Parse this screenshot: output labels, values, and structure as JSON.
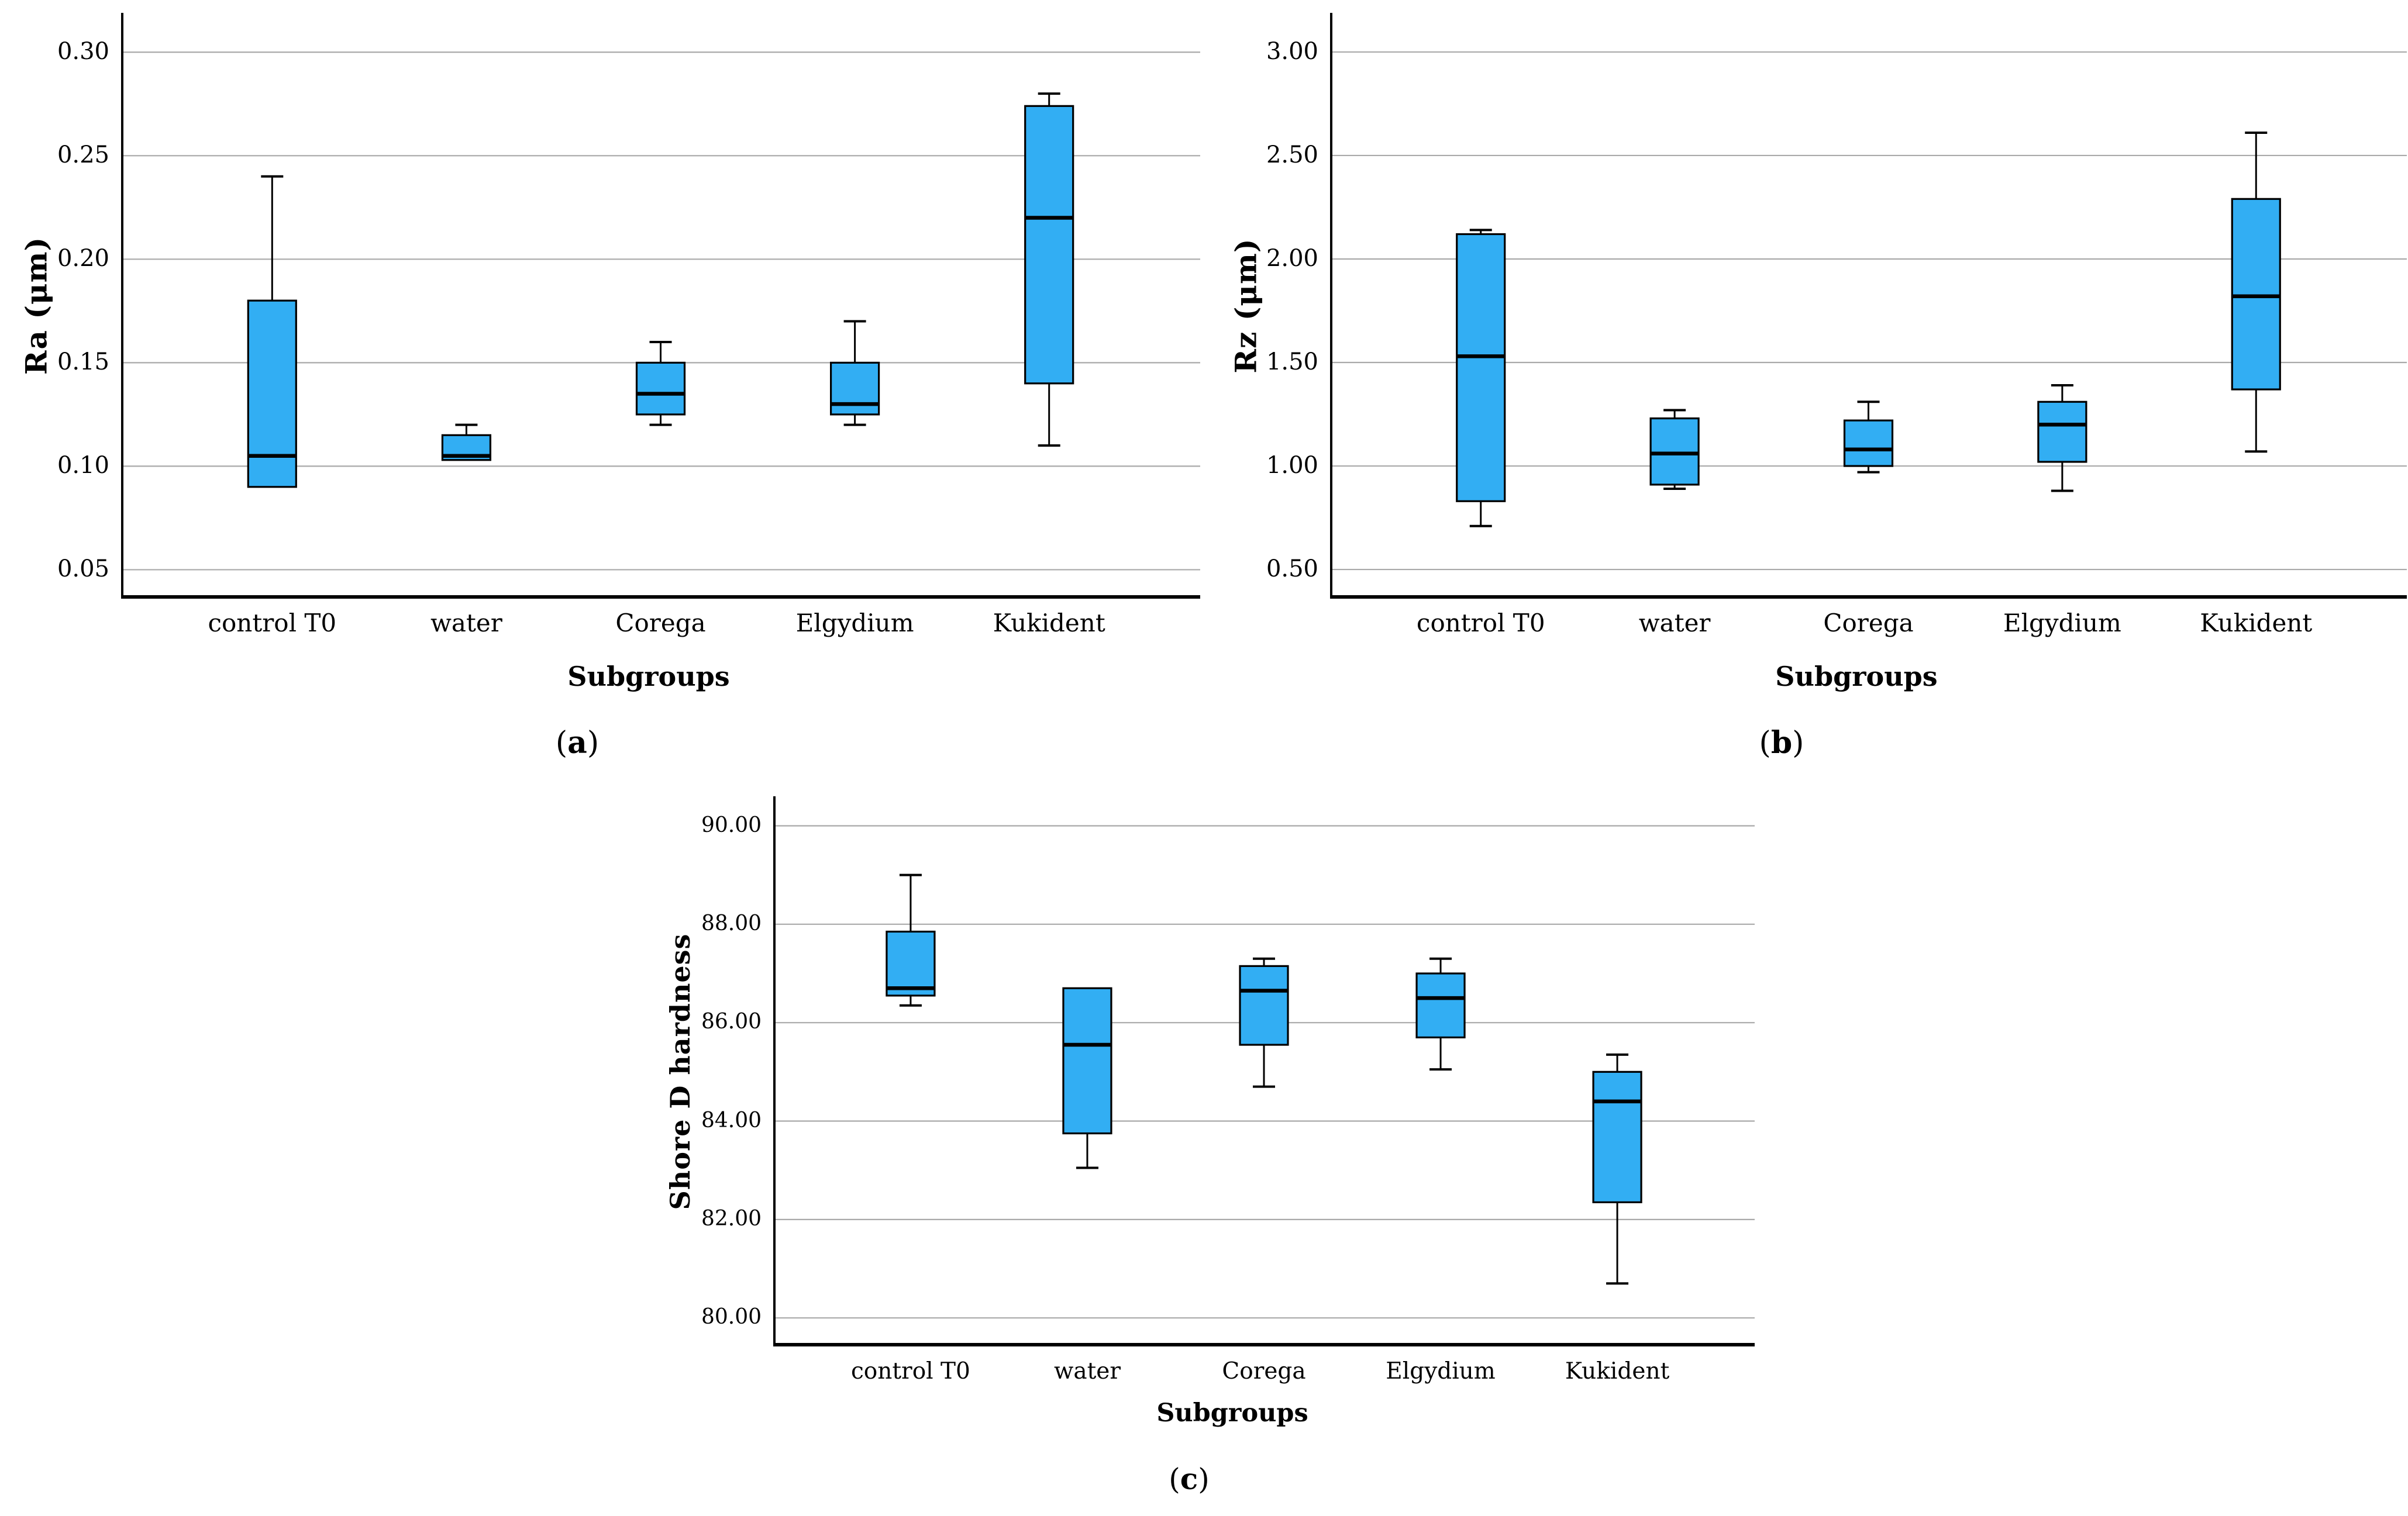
{
  "style": {
    "box_fill": "#32AEF3",
    "box_border": "#000000",
    "median_color": "#000000",
    "whisker_color": "#000000",
    "gridline_color": "#A9A9A9",
    "axis_color": "#000000",
    "background": "#FFFFFF",
    "text_color": "#000000"
  },
  "panel_labels": [
    {
      "open": "(",
      "letter": "a",
      "close": ")"
    },
    {
      "open": "(",
      "letter": "b",
      "close": ")"
    },
    {
      "open": "(",
      "letter": "c",
      "close": ")"
    }
  ],
  "chart_data": [
    {
      "type": "boxplot",
      "panel": "a",
      "ylabel": "Ra (μm)",
      "xlabel": "Subgroups",
      "categories": [
        "control T0",
        "water",
        "Corega",
        "Elgydium",
        "Kukident"
      ],
      "ylim": [
        0.036,
        0.319
      ],
      "yticks": [
        "0.05",
        "0.10",
        "0.15",
        "0.20",
        "0.25",
        "0.30"
      ],
      "grid": true,
      "boxes": [
        {
          "min": 0.09,
          "q1": 0.09,
          "median": 0.105,
          "q3": 0.18,
          "max": 0.24
        },
        {
          "min": 0.103,
          "q1": 0.103,
          "median": 0.105,
          "q3": 0.115,
          "max": 0.12
        },
        {
          "min": 0.12,
          "q1": 0.125,
          "median": 0.135,
          "q3": 0.15,
          "max": 0.16
        },
        {
          "min": 0.12,
          "q1": 0.125,
          "median": 0.13,
          "q3": 0.15,
          "max": 0.17
        },
        {
          "min": 0.11,
          "q1": 0.14,
          "median": 0.22,
          "q3": 0.274,
          "max": 0.28
        }
      ]
    },
    {
      "type": "boxplot",
      "panel": "b",
      "ylabel": "Rz (μm)",
      "xlabel": "Subgroups",
      "categories": [
        "control T0",
        "water",
        "Corega",
        "Elgydium",
        "Kukident"
      ],
      "ylim": [
        0.359,
        3.189
      ],
      "yticks": [
        "0.50",
        "1.00",
        "1.50",
        "2.00",
        "2.50",
        "3.00"
      ],
      "grid": true,
      "boxes": [
        {
          "min": 0.71,
          "q1": 0.83,
          "median": 1.53,
          "q3": 2.12,
          "max": 2.14
        },
        {
          "min": 0.89,
          "q1": 0.91,
          "median": 1.06,
          "q3": 1.23,
          "max": 1.27
        },
        {
          "min": 0.97,
          "q1": 1.0,
          "median": 1.08,
          "q3": 1.22,
          "max": 1.31
        },
        {
          "min": 0.88,
          "q1": 1.02,
          "median": 1.2,
          "q3": 1.31,
          "max": 1.39
        },
        {
          "min": 1.07,
          "q1": 1.37,
          "median": 1.82,
          "q3": 2.29,
          "max": 2.61
        }
      ]
    },
    {
      "type": "boxplot",
      "panel": "c",
      "ylabel": "Shore D hardness",
      "xlabel": "Subgroups",
      "categories": [
        "control T0",
        "water",
        "Corega",
        "Elgydium",
        "Kukident"
      ],
      "ylim": [
        79.42,
        90.6
      ],
      "yticks": [
        "80.00",
        "82.00",
        "84.00",
        "86.00",
        "88.00",
        "90.00"
      ],
      "grid": true,
      "boxes": [
        {
          "min": 86.35,
          "q1": 86.55,
          "median": 86.7,
          "q3": 87.85,
          "max": 89.0
        },
        {
          "min": 83.05,
          "q1": 83.75,
          "median": 85.55,
          "q3": 86.7,
          "max": 86.7
        },
        {
          "min": 84.7,
          "q1": 85.55,
          "median": 86.65,
          "q3": 87.15,
          "max": 87.3
        },
        {
          "min": 85.05,
          "q1": 85.7,
          "median": 86.5,
          "q3": 87.0,
          "max": 87.3
        },
        {
          "min": 80.7,
          "q1": 82.35,
          "median": 84.4,
          "q3": 85.0,
          "max": 85.35
        }
      ]
    }
  ]
}
